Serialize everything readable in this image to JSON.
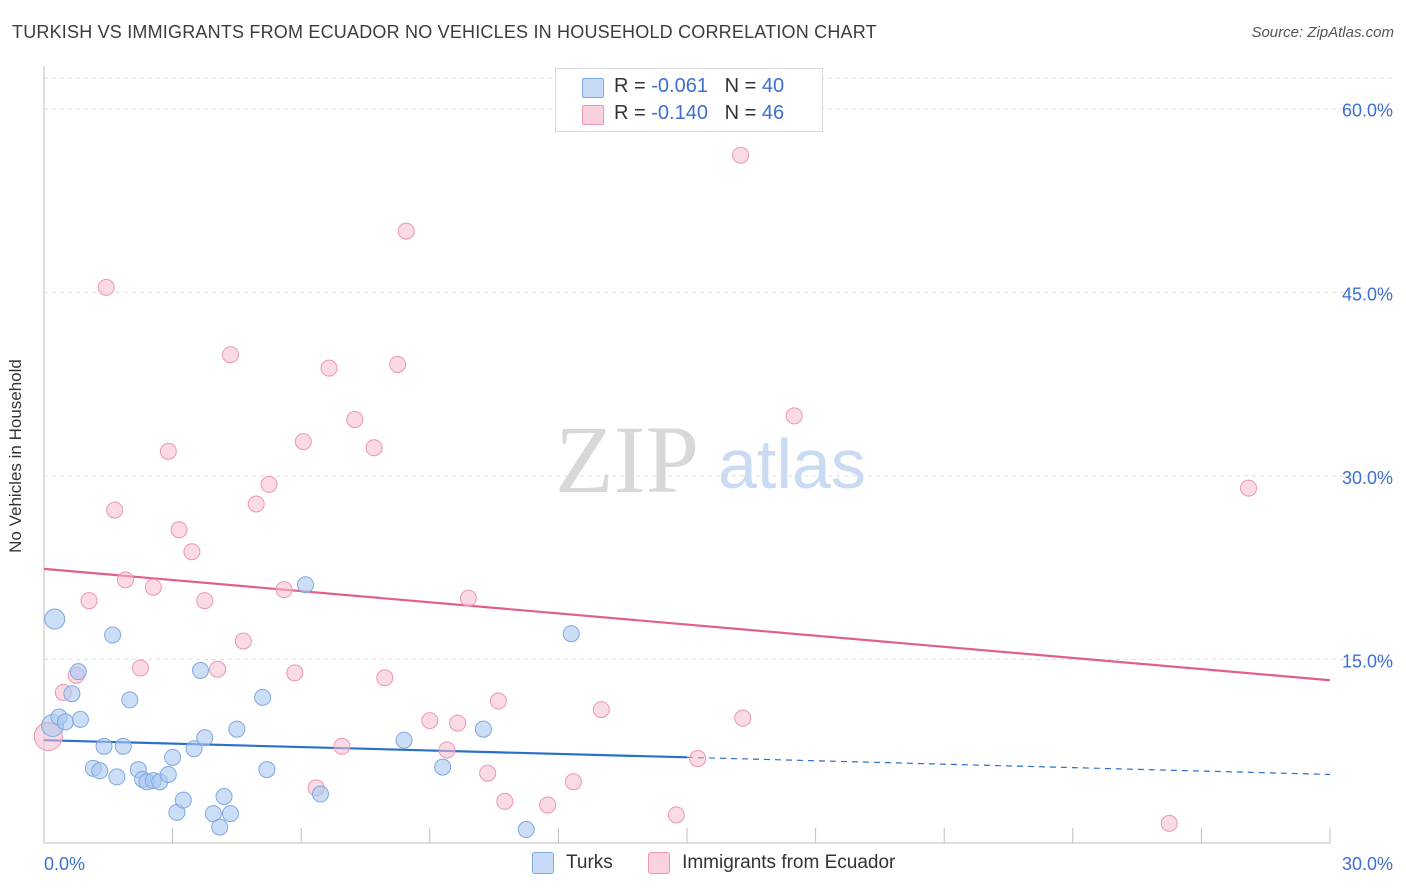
{
  "header": {
    "title": "TURKISH VS IMMIGRANTS FROM ECUADOR NO VEHICLES IN HOUSEHOLD CORRELATION CHART",
    "source": "Source: ZipAtlas.com"
  },
  "watermark": {
    "zip": "ZIP",
    "atlas": "atlas"
  },
  "legend_top": {
    "rows": [
      {
        "r_label": "R = ",
        "r_value": "-0.061",
        "n_label": "N = ",
        "n_value": "40"
      },
      {
        "r_label": "R = ",
        "r_value": "-0.140",
        "n_label": "N = ",
        "n_value": "46"
      }
    ]
  },
  "legend_bottom": {
    "items": [
      "Turks",
      "Immigrants from Ecuador"
    ]
  },
  "colors": {
    "turks_fill": "#aac8f0",
    "turks_stroke": "#7ea8e0",
    "turks_line": "#2a6fc9",
    "ecuador_fill": "#f6bccd",
    "ecuador_stroke": "#ec96b2",
    "ecuador_line": "#e0608a",
    "axis_tick_text": "#3d6fd1",
    "grid": "#dddddd"
  },
  "chart_data": {
    "type": "scatter",
    "title": "TURKISH VS IMMIGRANTS FROM ECUADOR NO VEHICLES IN HOUSEHOLD CORRELATION CHART",
    "xlabel": "",
    "ylabel": "No Vehicles in Household",
    "xlim": [
      0,
      30
    ],
    "ylim": [
      0,
      63
    ],
    "x_tick_labels": [
      "0.0%",
      "30.0%"
    ],
    "y_ticks": [
      15,
      30,
      45,
      60
    ],
    "y_tick_labels": [
      "15.0%",
      "30.0%",
      "45.0%",
      "60.0%"
    ],
    "grid": true,
    "legend_position": "top-center",
    "series": [
      {
        "name": "Turks",
        "points": [
          [
            0.2,
            9.6
          ],
          [
            0.25,
            18.3
          ],
          [
            0.35,
            10.3
          ],
          [
            0.5,
            9.9
          ],
          [
            0.65,
            12.2
          ],
          [
            0.8,
            14.0
          ],
          [
            0.85,
            10.1
          ],
          [
            1.15,
            6.1
          ],
          [
            1.3,
            5.9
          ],
          [
            1.4,
            7.9
          ],
          [
            1.6,
            17.0
          ],
          [
            1.7,
            5.4
          ],
          [
            1.85,
            7.9
          ],
          [
            2.0,
            11.7
          ],
          [
            2.2,
            6.0
          ],
          [
            2.3,
            5.2
          ],
          [
            2.4,
            5.0
          ],
          [
            2.55,
            5.1
          ],
          [
            2.7,
            5.0
          ],
          [
            2.9,
            5.6
          ],
          [
            3.0,
            7.0
          ],
          [
            3.1,
            2.5
          ],
          [
            3.25,
            3.5
          ],
          [
            3.5,
            7.7
          ],
          [
            3.65,
            14.1
          ],
          [
            3.75,
            8.6
          ],
          [
            3.95,
            2.4
          ],
          [
            4.1,
            1.3
          ],
          [
            4.2,
            3.8
          ],
          [
            4.35,
            2.4
          ],
          [
            4.5,
            9.3
          ],
          [
            5.1,
            11.9
          ],
          [
            5.2,
            6.0
          ],
          [
            6.1,
            21.1
          ],
          [
            6.45,
            4.0
          ],
          [
            8.4,
            8.4
          ],
          [
            9.3,
            6.2
          ],
          [
            10.25,
            9.3
          ],
          [
            11.25,
            1.1
          ],
          [
            12.3,
            17.1
          ]
        ],
        "trend": {
          "x0": 0,
          "y0": 8.4,
          "x1": 15,
          "y1": 7.0,
          "dashed_to_x": 30,
          "dashed_to_y": 5.6
        }
      },
      {
        "name": "Immigrants from Ecuador",
        "points": [
          [
            0.1,
            8.7
          ],
          [
            0.45,
            12.3
          ],
          [
            0.75,
            13.7
          ],
          [
            1.05,
            19.8
          ],
          [
            1.45,
            45.4
          ],
          [
            1.65,
            27.2
          ],
          [
            1.9,
            21.5
          ],
          [
            2.25,
            14.3
          ],
          [
            2.55,
            20.9
          ],
          [
            2.9,
            32.0
          ],
          [
            3.15,
            25.6
          ],
          [
            3.45,
            23.8
          ],
          [
            3.75,
            19.8
          ],
          [
            4.05,
            14.2
          ],
          [
            4.35,
            39.9
          ],
          [
            4.65,
            16.5
          ],
          [
            4.95,
            27.7
          ],
          [
            5.25,
            29.3
          ],
          [
            5.6,
            20.7
          ],
          [
            5.85,
            13.9
          ],
          [
            6.05,
            32.8
          ],
          [
            6.35,
            4.5
          ],
          [
            6.65,
            38.8
          ],
          [
            6.95,
            7.9
          ],
          [
            7.25,
            34.6
          ],
          [
            7.7,
            32.3
          ],
          [
            7.95,
            13.5
          ],
          [
            8.25,
            39.1
          ],
          [
            8.45,
            50.0
          ],
          [
            9.0,
            10.0
          ],
          [
            9.4,
            7.6
          ],
          [
            9.65,
            9.8
          ],
          [
            9.9,
            20.0
          ],
          [
            10.35,
            5.7
          ],
          [
            10.6,
            11.6
          ],
          [
            10.75,
            3.4
          ],
          [
            11.75,
            3.1
          ],
          [
            12.35,
            5.0
          ],
          [
            13.0,
            10.9
          ],
          [
            14.75,
            2.3
          ],
          [
            15.25,
            6.9
          ],
          [
            16.25,
            56.2
          ],
          [
            16.3,
            10.2
          ],
          [
            17.5,
            34.9
          ],
          [
            26.25,
            1.6
          ],
          [
            28.1,
            29.0
          ]
        ],
        "trend": {
          "x0": 0,
          "y0": 22.4,
          "x1": 30,
          "y1": 13.3
        }
      }
    ]
  }
}
